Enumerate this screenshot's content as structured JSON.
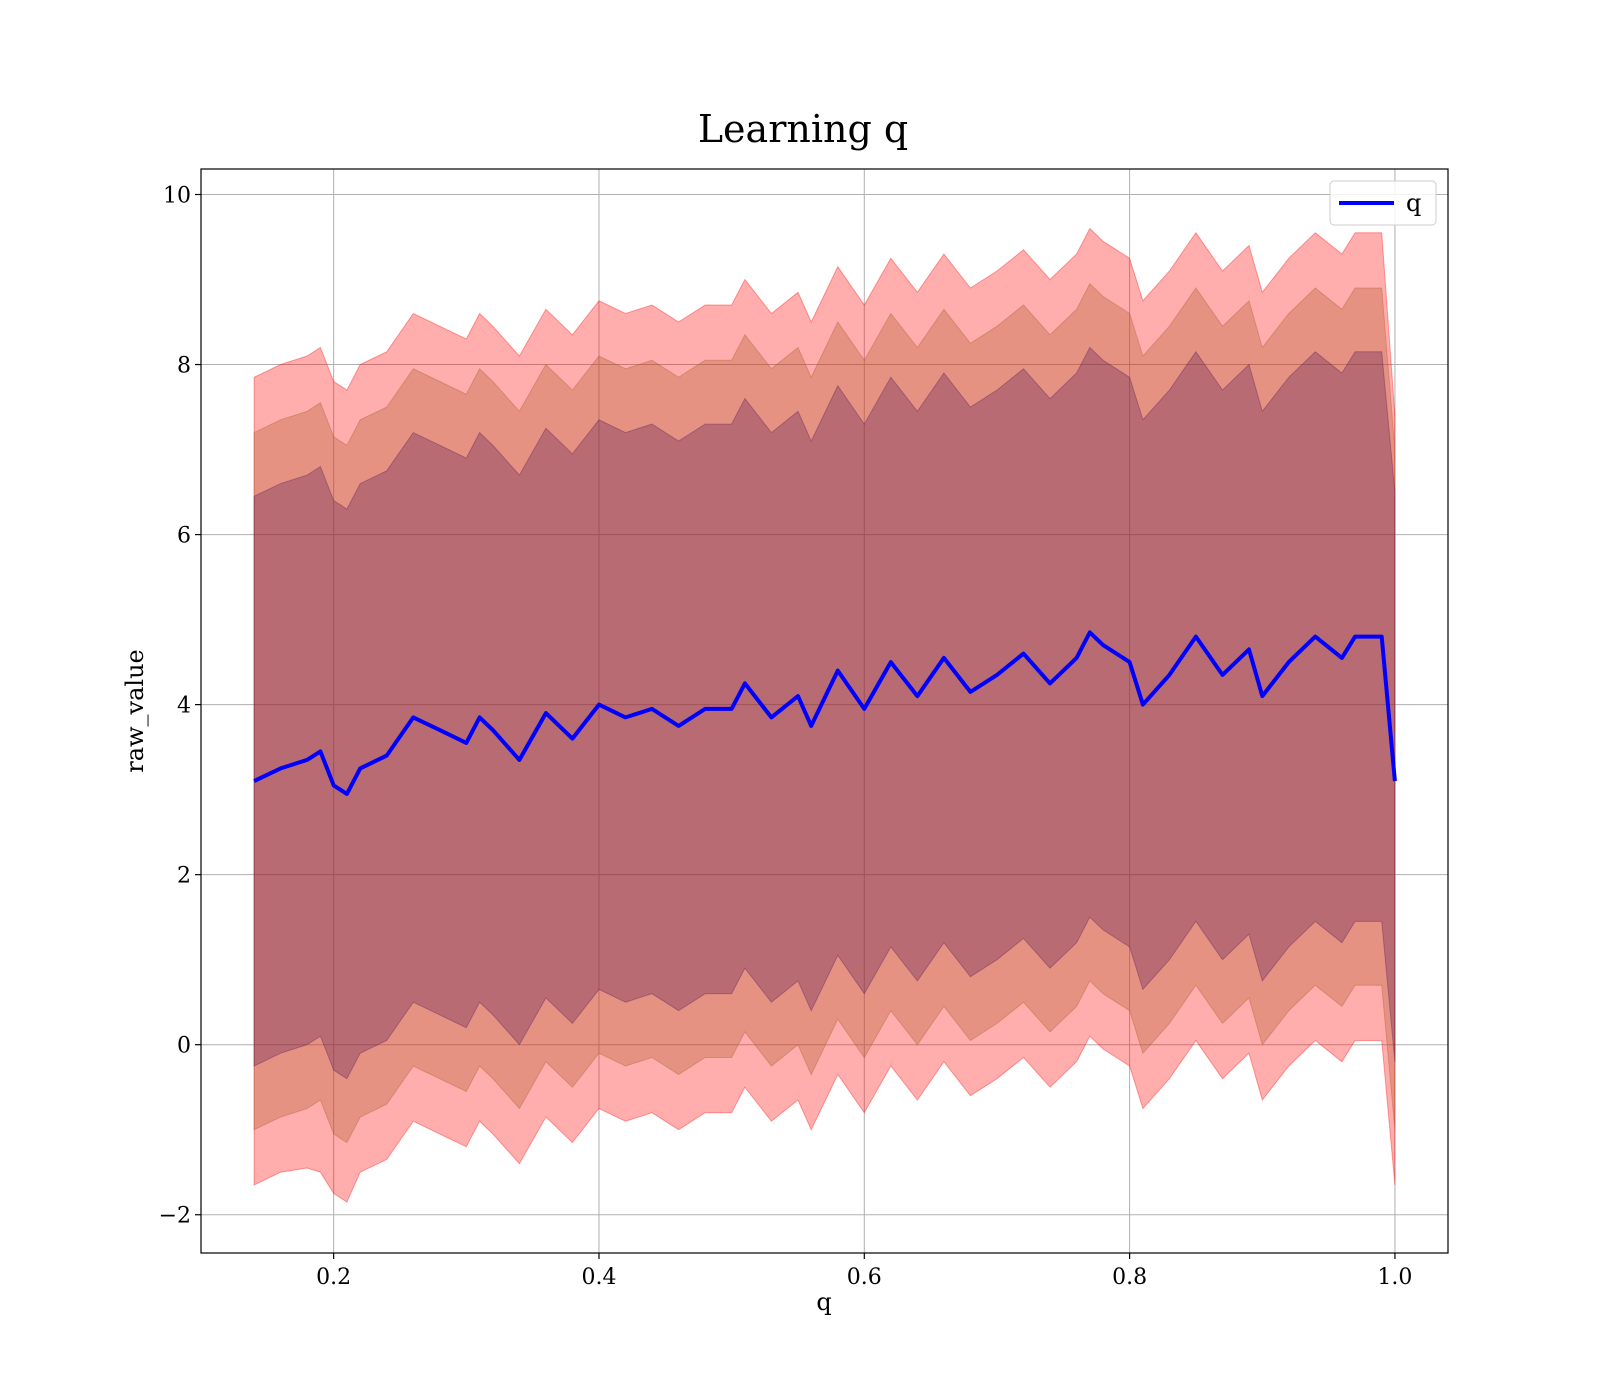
{
  "chart_data": {
    "type": "line",
    "title": "Learning q",
    "xlabel": "q",
    "ylabel": "raw_value",
    "xlim": [
      0.1,
      1.04
    ],
    "ylim": [
      -2.45,
      10.3
    ],
    "xticks": [
      0.2,
      0.4,
      0.6,
      0.8,
      1.0
    ],
    "xtick_labels": [
      "0.2",
      "0.4",
      "0.6",
      "0.8",
      "1.0"
    ],
    "yticks": [
      -2,
      0,
      2,
      4,
      6,
      8,
      10
    ],
    "ytick_labels": [
      "−2",
      "0",
      "2",
      "4",
      "6",
      "8",
      "10"
    ],
    "grid": true,
    "legend": {
      "placement": "top-right",
      "entries": [
        {
          "label": "q",
          "color": "#0000ff"
        }
      ]
    },
    "colors": {
      "line": "#0000ff",
      "band_outer": "#ff0000",
      "band_middle": "#b05a2a",
      "band_inner": "#5a1a55"
    },
    "series": [
      {
        "name": "q",
        "x": [
          0.14,
          0.16,
          0.18,
          0.19,
          0.2,
          0.21,
          0.22,
          0.24,
          0.26,
          0.28,
          0.3,
          0.31,
          0.32,
          0.34,
          0.36,
          0.38,
          0.4,
          0.42,
          0.44,
          0.46,
          0.48,
          0.5,
          0.51,
          0.53,
          0.55,
          0.56,
          0.58,
          0.6,
          0.62,
          0.64,
          0.66,
          0.68,
          0.7,
          0.72,
          0.74,
          0.76,
          0.77,
          0.78,
          0.8,
          0.81,
          0.83,
          0.85,
          0.87,
          0.89,
          0.9,
          0.92,
          0.94,
          0.96,
          0.97,
          0.99,
          1.0
        ],
        "y": [
          3.1,
          3.25,
          3.35,
          3.45,
          3.05,
          2.95,
          3.25,
          3.4,
          3.85,
          3.7,
          3.55,
          3.85,
          3.7,
          3.35,
          3.9,
          3.6,
          4.0,
          3.85,
          3.95,
          3.75,
          3.95,
          3.95,
          4.25,
          3.85,
          4.1,
          3.75,
          4.4,
          3.95,
          4.5,
          4.1,
          4.55,
          4.15,
          4.35,
          4.6,
          4.25,
          4.55,
          4.85,
          4.7,
          4.5,
          4.0,
          4.35,
          4.8,
          4.35,
          4.65,
          4.1,
          4.5,
          4.8,
          4.55,
          4.8,
          4.8,
          3.1
        ]
      }
    ],
    "bands": [
      {
        "x": [
          0.14,
          0.16,
          0.18,
          0.19,
          0.2,
          0.21,
          0.22,
          0.24,
          0.26,
          0.28,
          0.3,
          0.31,
          0.32,
          0.34,
          0.36,
          0.38,
          0.4,
          0.42,
          0.44,
          0.46,
          0.48,
          0.5,
          0.51,
          0.53,
          0.55,
          0.56,
          0.58,
          0.6,
          0.62,
          0.64,
          0.66,
          0.68,
          0.7,
          0.72,
          0.74,
          0.76,
          0.77,
          0.78,
          0.8,
          0.81,
          0.83,
          0.85,
          0.87,
          0.89,
          0.9,
          0.92,
          0.94,
          0.96,
          0.97,
          0.99,
          1.0
        ],
        "lower": [
          -1.65,
          -1.5,
          -1.45,
          -1.5,
          -1.75,
          -1.85,
          -1.5,
          -1.35,
          -0.9,
          -1.05,
          -1.2,
          -0.9,
          -1.05,
          -1.4,
          -0.85,
          -1.15,
          -0.75,
          -0.9,
          -0.8,
          -1.0,
          -0.8,
          -0.8,
          -0.5,
          -0.9,
          -0.65,
          -1.0,
          -0.35,
          -0.8,
          -0.25,
          -0.65,
          -0.2,
          -0.6,
          -0.4,
          -0.15,
          -0.5,
          -0.2,
          0.1,
          -0.05,
          -0.25,
          -0.75,
          -0.4,
          0.05,
          -0.4,
          -0.1,
          -0.65,
          -0.25,
          0.05,
          -0.2,
          0.05,
          0.05,
          -1.65
        ],
        "upper": [
          7.85,
          8.0,
          8.1,
          8.2,
          7.8,
          7.7,
          8.0,
          8.15,
          8.6,
          8.45,
          8.3,
          8.6,
          8.45,
          8.1,
          8.65,
          8.35,
          8.75,
          8.6,
          8.7,
          8.5,
          8.7,
          8.7,
          9.0,
          8.6,
          8.85,
          8.5,
          9.15,
          8.7,
          9.25,
          8.85,
          9.3,
          8.9,
          9.1,
          9.35,
          9.0,
          9.3,
          9.6,
          9.45,
          9.25,
          8.75,
          9.1,
          9.55,
          9.1,
          9.4,
          8.85,
          9.25,
          9.55,
          9.3,
          9.55,
          9.55,
          7.4
        ]
      },
      {
        "x": [
          0.14,
          0.16,
          0.18,
          0.19,
          0.2,
          0.21,
          0.22,
          0.24,
          0.26,
          0.28,
          0.3,
          0.31,
          0.32,
          0.34,
          0.36,
          0.38,
          0.4,
          0.42,
          0.44,
          0.46,
          0.48,
          0.5,
          0.51,
          0.53,
          0.55,
          0.56,
          0.58,
          0.6,
          0.62,
          0.64,
          0.66,
          0.68,
          0.7,
          0.72,
          0.74,
          0.76,
          0.77,
          0.78,
          0.8,
          0.81,
          0.83,
          0.85,
          0.87,
          0.89,
          0.9,
          0.92,
          0.94,
          0.96,
          0.97,
          0.99,
          1.0
        ],
        "lower": [
          -1.0,
          -0.85,
          -0.75,
          -0.65,
          -1.05,
          -1.15,
          -0.85,
          -0.7,
          -0.25,
          -0.4,
          -0.55,
          -0.25,
          -0.4,
          -0.75,
          -0.2,
          -0.5,
          -0.1,
          -0.25,
          -0.15,
          -0.35,
          -0.15,
          -0.15,
          0.15,
          -0.25,
          0.0,
          -0.35,
          0.3,
          -0.15,
          0.4,
          0.0,
          0.45,
          0.05,
          0.25,
          0.5,
          0.15,
          0.45,
          0.75,
          0.6,
          0.4,
          -0.1,
          0.25,
          0.7,
          0.25,
          0.55,
          0.0,
          0.4,
          0.7,
          0.45,
          0.7,
          0.7,
          -1.0
        ],
        "upper": [
          7.2,
          7.35,
          7.45,
          7.55,
          7.15,
          7.05,
          7.35,
          7.5,
          7.95,
          7.8,
          7.65,
          7.95,
          7.8,
          7.45,
          8.0,
          7.7,
          8.1,
          7.95,
          8.05,
          7.85,
          8.05,
          8.05,
          8.35,
          7.95,
          8.2,
          7.85,
          8.5,
          8.05,
          8.6,
          8.2,
          8.65,
          8.25,
          8.45,
          8.7,
          8.35,
          8.65,
          8.95,
          8.8,
          8.6,
          8.1,
          8.45,
          8.9,
          8.45,
          8.75,
          8.2,
          8.6,
          8.9,
          8.65,
          8.9,
          8.9,
          7.0
        ]
      },
      {
        "x": [
          0.14,
          0.16,
          0.18,
          0.19,
          0.2,
          0.21,
          0.22,
          0.24,
          0.26,
          0.28,
          0.3,
          0.31,
          0.32,
          0.34,
          0.36,
          0.38,
          0.4,
          0.42,
          0.44,
          0.46,
          0.48,
          0.5,
          0.51,
          0.53,
          0.55,
          0.56,
          0.58,
          0.6,
          0.62,
          0.64,
          0.66,
          0.68,
          0.7,
          0.72,
          0.74,
          0.76,
          0.77,
          0.78,
          0.8,
          0.81,
          0.83,
          0.85,
          0.87,
          0.89,
          0.9,
          0.92,
          0.94,
          0.96,
          0.97,
          0.99,
          1.0
        ],
        "lower": [
          -0.25,
          -0.1,
          0.0,
          0.1,
          -0.3,
          -0.4,
          -0.1,
          0.05,
          0.5,
          0.35,
          0.2,
          0.5,
          0.35,
          0.0,
          0.55,
          0.25,
          0.65,
          0.5,
          0.6,
          0.4,
          0.6,
          0.6,
          0.9,
          0.5,
          0.75,
          0.4,
          1.05,
          0.6,
          1.15,
          0.75,
          1.2,
          0.8,
          1.0,
          1.25,
          0.9,
          1.2,
          1.5,
          1.35,
          1.15,
          0.65,
          1.0,
          1.45,
          1.0,
          1.3,
          0.75,
          1.15,
          1.45,
          1.2,
          1.45,
          1.45,
          -0.2
        ],
        "upper": [
          6.45,
          6.6,
          6.7,
          6.8,
          6.4,
          6.3,
          6.6,
          6.75,
          7.2,
          7.05,
          6.9,
          7.2,
          7.05,
          6.7,
          7.25,
          6.95,
          7.35,
          7.2,
          7.3,
          7.1,
          7.3,
          7.3,
          7.6,
          7.2,
          7.45,
          7.1,
          7.75,
          7.3,
          7.85,
          7.45,
          7.9,
          7.5,
          7.7,
          7.95,
          7.6,
          7.9,
          8.2,
          8.05,
          7.85,
          7.35,
          7.7,
          8.15,
          7.7,
          8.0,
          7.45,
          7.85,
          8.15,
          7.9,
          8.15,
          8.15,
          6.5
        ]
      }
    ]
  }
}
